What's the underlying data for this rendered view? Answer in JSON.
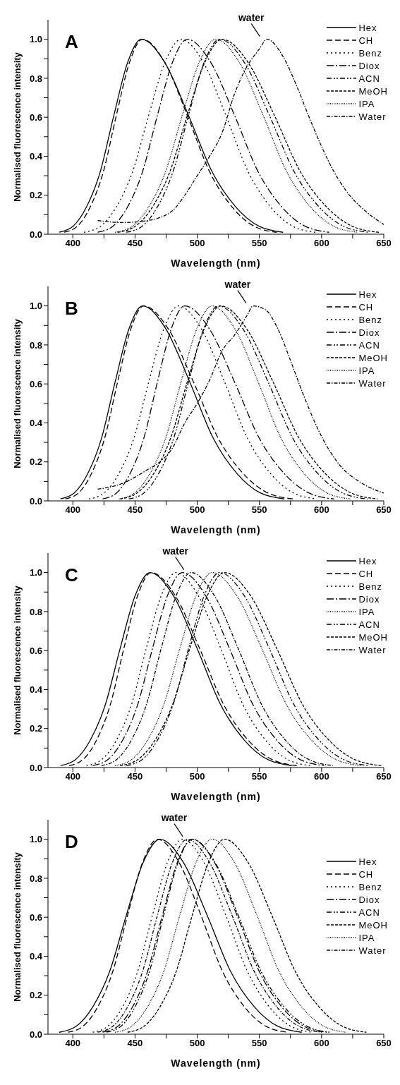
{
  "chart_data": [
    {
      "type": "line",
      "title": "A",
      "xlabel": "Wavelength (nm)",
      "ylabel": "Normalised fluorescence intensity",
      "xlim": [
        380,
        650
      ],
      "ylim": [
        0,
        1.1
      ],
      "xticks": [
        400,
        {
          "value": 425,
          "label": null
        },
        450,
        {
          "value": 475,
          "label": null
        },
        500,
        {
          "value": 525,
          "label": null
        },
        550,
        {
          "value": 575,
          "label": null
        },
        600,
        {
          "value": 625,
          "label": null
        },
        650
      ],
      "yticks": [
        {
          "value": 0,
          "label": "0.0"
        },
        {
          "value": 0.1,
          "label": null
        },
        {
          "value": 0.2,
          "label": "0.2"
        },
        {
          "value": 0.3,
          "label": null
        },
        {
          "value": 0.4,
          "label": "0.4"
        },
        {
          "value": 0.5,
          "label": null
        },
        {
          "value": 0.6,
          "label": "0.6"
        },
        {
          "value": 0.7,
          "label": null
        },
        {
          "value": 0.8,
          "label": "0.8"
        },
        {
          "value": 0.9,
          "label": null
        },
        {
          "value": 1,
          "label": "1.0"
        }
      ],
      "legend": "top right",
      "annotations": [
        {
          "text": "water",
          "x": 556,
          "y": 1.0
        }
      ],
      "series": [
        {
          "name": "Hex",
          "color": "#000000",
          "line_style": "solid",
          "x": [
            389,
            400,
            411,
            422,
            433,
            444,
            455,
            474,
            493,
            512,
            531,
            550,
            569
          ],
          "values": [
            0.01,
            0.04,
            0.14,
            0.32,
            0.61,
            0.88,
            1,
            0.88,
            0.61,
            0.32,
            0.14,
            0.04,
            0.01
          ]
        },
        {
          "name": "CH",
          "color": "#000000",
          "line_style": "dashed",
          "x": [
            393,
            403.5,
            414,
            424.5,
            435,
            445.5,
            456,
            474,
            492,
            510,
            528,
            546,
            564
          ],
          "values": [
            0.01,
            0.04,
            0.14,
            0.32,
            0.61,
            0.88,
            1,
            0.88,
            0.61,
            0.32,
            0.14,
            0.04,
            0.01
          ]
        },
        {
          "name": "Benz",
          "color": "#000000",
          "line_style": "dotted",
          "x": [
            409,
            422,
            435,
            448,
            461,
            474,
            487,
            505,
            523,
            541,
            559,
            577,
            595
          ],
          "values": [
            0.01,
            0.04,
            0.14,
            0.32,
            0.61,
            0.88,
            1,
            0.88,
            0.61,
            0.32,
            0.14,
            0.04,
            0.01
          ]
        },
        {
          "name": "Diox",
          "color": "#000000",
          "line_style": "dashdot",
          "x": [
            420,
            432,
            444,
            456,
            468,
            480,
            492,
            511,
            530,
            549,
            568,
            587,
            606
          ],
          "values": [
            0.01,
            0.04,
            0.14,
            0.32,
            0.61,
            0.88,
            1,
            0.88,
            0.61,
            0.32,
            0.14,
            0.04,
            0.01
          ]
        },
        {
          "name": "ACN",
          "color": "#000000",
          "line_style": "dashdotdot",
          "x": [
            443,
            455.5,
            468,
            480.5,
            493,
            505.5,
            518,
            538,
            558,
            578,
            598,
            618,
            638
          ],
          "values": [
            0.01,
            0.04,
            0.14,
            0.32,
            0.61,
            0.88,
            1,
            0.88,
            0.61,
            0.32,
            0.14,
            0.04,
            0.01
          ]
        },
        {
          "name": "MeOH",
          "color": "#000000",
          "line_style": "shortdash",
          "x": [
            436,
            450,
            464,
            478,
            492,
            506,
            520,
            541,
            562,
            583,
            604,
            625,
            646
          ],
          "values": [
            0.01,
            0.04,
            0.14,
            0.32,
            0.61,
            0.88,
            1,
            0.88,
            0.61,
            0.32,
            0.14,
            0.04,
            0.01
          ]
        },
        {
          "name": "IPA",
          "color": "#000000",
          "line_style": "densedot",
          "x": [
            434,
            447.5,
            461,
            474.5,
            488,
            501.5,
            515,
            534,
            553,
            572,
            591,
            610,
            629
          ],
          "values": [
            0.01,
            0.04,
            0.14,
            0.32,
            0.61,
            0.88,
            1,
            0.88,
            0.61,
            0.32,
            0.14,
            0.04,
            0.01
          ]
        },
        {
          "name": "Water",
          "color": "#000000",
          "line_style": "shortdashdot",
          "x": [
            420,
            440,
            460,
            480,
            490,
            500,
            510,
            520,
            530,
            540,
            550,
            556,
            570,
            580,
            590,
            600,
            610,
            620,
            635,
            650
          ],
          "values": [
            0.07,
            0.06,
            0.07,
            0.12,
            0.2,
            0.3,
            0.4,
            0.52,
            0.72,
            0.86,
            0.95,
            1,
            0.9,
            0.76,
            0.6,
            0.45,
            0.32,
            0.22,
            0.12,
            0.05
          ]
        }
      ]
    },
    {
      "type": "line",
      "title": "B",
      "xlabel": "Wavelength (nm)",
      "ylabel": "Normalised fluorescence intensity",
      "xlim": [
        380,
        650
      ],
      "ylim": [
        0,
        1.1
      ],
      "xticks": [
        400,
        {
          "value": 425,
          "label": null
        },
        450,
        {
          "value": 475,
          "label": null
        },
        500,
        {
          "value": 525,
          "label": null
        },
        550,
        {
          "value": 575,
          "label": null
        },
        600,
        {
          "value": 625,
          "label": null
        },
        650
      ],
      "yticks": [
        {
          "value": 0,
          "label": "0.0"
        },
        {
          "value": 0.1,
          "label": null
        },
        {
          "value": 0.2,
          "label": "0.2"
        },
        {
          "value": 0.3,
          "label": null
        },
        {
          "value": 0.4,
          "label": "0.4"
        },
        {
          "value": 0.5,
          "label": null
        },
        {
          "value": 0.6,
          "label": "0.6"
        },
        {
          "value": 0.7,
          "label": null
        },
        {
          "value": 0.8,
          "label": "0.8"
        },
        {
          "value": 0.9,
          "label": null
        },
        {
          "value": 1,
          "label": "1.0"
        }
      ],
      "legend": "top right",
      "annotations": [
        {
          "text": "water",
          "x": 545,
          "y": 1.0
        }
      ],
      "series": [
        {
          "name": "Hex",
          "color": "#000000",
          "line_style": "solid",
          "x": [
            390,
            401,
            412,
            423,
            434,
            445,
            456,
            475,
            494,
            513,
            532,
            551,
            570
          ],
          "values": [
            0.01,
            0.04,
            0.14,
            0.32,
            0.61,
            0.88,
            1,
            0.88,
            0.61,
            0.32,
            0.14,
            0.04,
            0.01
          ]
        },
        {
          "name": "CH",
          "color": "#000000",
          "line_style": "dashed",
          "x": [
            394,
            404.5,
            415,
            425.5,
            436,
            446.5,
            457,
            477,
            497,
            517,
            537,
            557,
            577
          ],
          "values": [
            0.01,
            0.04,
            0.14,
            0.32,
            0.61,
            0.88,
            1,
            0.88,
            0.61,
            0.32,
            0.14,
            0.04,
            0.01
          ]
        },
        {
          "name": "Benz",
          "color": "#000000",
          "line_style": "dotted",
          "x": [
            413,
            425,
            437,
            449,
            461,
            473,
            485,
            503.5,
            522,
            540.5,
            559,
            577.5,
            596
          ],
          "values": [
            0.01,
            0.04,
            0.14,
            0.32,
            0.61,
            0.88,
            1,
            0.88,
            0.61,
            0.32,
            0.14,
            0.04,
            0.01
          ]
        },
        {
          "name": "Diox",
          "color": "#000000",
          "line_style": "dashdot",
          "x": [
            424,
            435,
            446,
            457,
            468,
            479,
            490,
            510,
            530,
            550,
            570,
            590,
            610
          ],
          "values": [
            0.01,
            0.04,
            0.14,
            0.32,
            0.61,
            0.88,
            1,
            0.88,
            0.61,
            0.32,
            0.14,
            0.04,
            0.01
          ]
        },
        {
          "name": "ACN",
          "color": "#000000",
          "line_style": "dashdotdot",
          "x": [
            445,
            457,
            469,
            481,
            493,
            505,
            517,
            537,
            557,
            577,
            597,
            617,
            637
          ],
          "values": [
            0.01,
            0.04,
            0.14,
            0.32,
            0.61,
            0.88,
            1,
            0.88,
            0.61,
            0.32,
            0.14,
            0.04,
            0.01
          ]
        },
        {
          "name": "MeOH",
          "color": "#000000",
          "line_style": "shortdash",
          "x": [
            438,
            451.5,
            465,
            478.5,
            492,
            505.5,
            519,
            540,
            561,
            582,
            603,
            624,
            645
          ],
          "values": [
            0.01,
            0.04,
            0.14,
            0.32,
            0.61,
            0.88,
            1,
            0.88,
            0.61,
            0.32,
            0.14,
            0.04,
            0.01
          ]
        },
        {
          "name": "IPA",
          "color": "#000000",
          "line_style": "densedot",
          "x": [
            437,
            449.5,
            462,
            474.5,
            487,
            499.5,
            512,
            530.5,
            549,
            567.5,
            586,
            604.5,
            623
          ],
          "values": [
            0.01,
            0.04,
            0.14,
            0.32,
            0.61,
            0.88,
            1,
            0.88,
            0.61,
            0.32,
            0.14,
            0.04,
            0.01
          ]
        },
        {
          "name": "Water",
          "color": "#000000",
          "line_style": "shortdashdot",
          "x": [
            420,
            440,
            460,
            470,
            480,
            490,
            500,
            510,
            520,
            530,
            540,
            545,
            555,
            565,
            575,
            585,
            600,
            615,
            630,
            650
          ],
          "values": [
            0.06,
            0.09,
            0.16,
            0.2,
            0.27,
            0.4,
            0.5,
            0.62,
            0.77,
            0.85,
            0.95,
            1,
            0.98,
            0.88,
            0.72,
            0.55,
            0.33,
            0.18,
            0.1,
            0.04
          ]
        }
      ]
    },
    {
      "type": "line",
      "title": "C",
      "xlabel": "Wavelength (nm)",
      "ylabel": "Normalised fluorescence intensity",
      "xlim": [
        380,
        650
      ],
      "ylim": [
        0,
        1.1
      ],
      "xticks": [
        400,
        {
          "value": 425,
          "label": null
        },
        450,
        {
          "value": 475,
          "label": null
        },
        500,
        {
          "value": 525,
          "label": null
        },
        550,
        {
          "value": 575,
          "label": null
        },
        600,
        {
          "value": 625,
          "label": null
        },
        650
      ],
      "yticks": [
        {
          "value": 0,
          "label": "0.0"
        },
        {
          "value": 0.1,
          "label": null
        },
        {
          "value": 0.2,
          "label": "0.2"
        },
        {
          "value": 0.3,
          "label": null
        },
        {
          "value": 0.4,
          "label": "0.4"
        },
        {
          "value": 0.5,
          "label": null
        },
        {
          "value": 0.6,
          "label": "0.6"
        },
        {
          "value": 0.7,
          "label": null
        },
        {
          "value": 0.8,
          "label": "0.8"
        },
        {
          "value": 0.9,
          "label": null
        },
        {
          "value": 1,
          "label": "1.0"
        }
      ],
      "legend": "top right",
      "annotations": [
        {
          "text": "water",
          "x": 495,
          "y": 1.0
        }
      ],
      "series": [
        {
          "name": "Hex",
          "color": "#000000",
          "line_style": "solid",
          "x": [
            390,
            402,
            414,
            426,
            438,
            450,
            462,
            481,
            500,
            519,
            538,
            557,
            576
          ],
          "values": [
            0.01,
            0.04,
            0.14,
            0.32,
            0.61,
            0.88,
            1,
            0.88,
            0.61,
            0.32,
            0.14,
            0.04,
            0.01
          ]
        },
        {
          "name": "CH",
          "color": "#000000",
          "line_style": "dashed",
          "x": [
            397,
            408,
            419,
            430,
            441,
            452,
            463,
            482.5,
            502,
            521.5,
            541,
            560.5,
            580
          ],
          "values": [
            0.01,
            0.04,
            0.14,
            0.32,
            0.61,
            0.88,
            1,
            0.88,
            0.61,
            0.32,
            0.14,
            0.04,
            0.01
          ]
        },
        {
          "name": "Benz",
          "color": "#000000",
          "line_style": "dotted",
          "x": [
            411,
            423,
            435,
            447,
            459,
            471,
            483,
            501,
            519,
            537,
            555,
            573,
            591
          ],
          "values": [
            0.01,
            0.04,
            0.14,
            0.32,
            0.61,
            0.88,
            1,
            0.88,
            0.61,
            0.32,
            0.14,
            0.04,
            0.01
          ]
        },
        {
          "name": "Diox",
          "color": "#000000",
          "line_style": "dashdot",
          "x": [
            416,
            428,
            440,
            452,
            464,
            476,
            488,
            507,
            526,
            545,
            564,
            583,
            602
          ],
          "values": [
            0.01,
            0.04,
            0.14,
            0.32,
            0.61,
            0.88,
            1,
            0.88,
            0.61,
            0.32,
            0.14,
            0.04,
            0.01
          ]
        },
        {
          "name": "IPA",
          "color": "#000000",
          "line_style": "densedot",
          "x": [
            434,
            447,
            460,
            473,
            486,
            499,
            512,
            532,
            552,
            572,
            592,
            612,
            632
          ],
          "values": [
            0.01,
            0.04,
            0.14,
            0.32,
            0.61,
            0.88,
            1,
            0.88,
            0.61,
            0.32,
            0.14,
            0.04,
            0.01
          ]
        },
        {
          "name": "ACN",
          "color": "#000000",
          "line_style": "dashdotdot",
          "x": [
            443,
            455.5,
            468,
            480.5,
            493,
            505.5,
            518,
            538,
            558,
            578,
            598,
            618,
            638
          ],
          "values": [
            0.01,
            0.04,
            0.14,
            0.32,
            0.61,
            0.88,
            1,
            0.88,
            0.61,
            0.32,
            0.14,
            0.04,
            0.01
          ]
        },
        {
          "name": "MeOH",
          "color": "#000000",
          "line_style": "shortdash",
          "x": [
            438,
            452,
            466,
            480,
            494,
            508,
            522,
            543,
            564,
            585,
            606,
            627,
            648
          ],
          "values": [
            0.01,
            0.04,
            0.14,
            0.32,
            0.61,
            0.88,
            1,
            0.88,
            0.61,
            0.32,
            0.14,
            0.04,
            0.01
          ]
        },
        {
          "name": "Water",
          "color": "#000000",
          "line_style": "shortdashdot",
          "x": [
            423,
            435,
            447,
            459,
            471,
            483,
            495,
            514,
            533,
            552,
            571,
            590,
            609
          ],
          "values": [
            0.01,
            0.04,
            0.14,
            0.32,
            0.61,
            0.88,
            1,
            0.88,
            0.61,
            0.32,
            0.14,
            0.04,
            0.01
          ]
        }
      ]
    },
    {
      "type": "line",
      "title": "D",
      "xlabel": "Wavelength (nm)",
      "ylabel": "Normalised fluorescence intensity",
      "xlim": [
        380,
        650
      ],
      "ylim": [
        0,
        1.1
      ],
      "xticks": [
        400,
        {
          "value": 425,
          "label": null
        },
        450,
        {
          "value": 475,
          "label": null
        },
        500,
        {
          "value": 525,
          "label": null
        },
        550,
        {
          "value": 575,
          "label": null
        },
        600,
        {
          "value": 625,
          "label": null
        },
        650
      ],
      "yticks": [
        {
          "value": 0,
          "label": "0.0"
        },
        {
          "value": 0.1,
          "label": null
        },
        {
          "value": 0.2,
          "label": "0.2"
        },
        {
          "value": 0.3,
          "label": null
        },
        {
          "value": 0.4,
          "label": "0.4"
        },
        {
          "value": 0.5,
          "label": null
        },
        {
          "value": 0.6,
          "label": "0.6"
        },
        {
          "value": 0.7,
          "label": null
        },
        {
          "value": 0.8,
          "label": "0.8"
        },
        {
          "value": 0.9,
          "label": null
        },
        {
          "value": 1,
          "label": "1.0"
        }
      ],
      "legend": "right",
      "annotations": [
        {
          "text": "water",
          "x": 494,
          "y": 1.0
        }
      ],
      "series": [
        {
          "name": "Hex",
          "color": "#000000",
          "line_style": "solid",
          "x": [
            389,
            402.5,
            416,
            429.5,
            443,
            456.5,
            470,
            489,
            508,
            527,
            546,
            565,
            584
          ],
          "values": [
            0.01,
            0.04,
            0.14,
            0.32,
            0.61,
            0.88,
            1,
            0.88,
            0.61,
            0.32,
            0.14,
            0.04,
            0.01
          ]
        },
        {
          "name": "CH",
          "color": "#000000",
          "line_style": "dashed",
          "x": [
            396,
            408,
            420,
            432,
            444,
            456,
            468,
            485.5,
            503,
            520.5,
            538,
            555.5,
            573
          ],
          "values": [
            0.01,
            0.04,
            0.14,
            0.32,
            0.61,
            0.88,
            1,
            0.88,
            0.61,
            0.32,
            0.14,
            0.04,
            0.01
          ]
        },
        {
          "name": "Benz",
          "color": "#000000",
          "line_style": "dotted",
          "x": [
            416,
            428,
            440,
            452,
            464,
            476,
            488,
            505.5,
            523,
            540.5,
            558,
            575.5,
            593
          ],
          "values": [
            0.01,
            0.04,
            0.14,
            0.32,
            0.61,
            0.88,
            1,
            0.88,
            0.61,
            0.32,
            0.14,
            0.04,
            0.01
          ]
        },
        {
          "name": "Diox",
          "color": "#000000",
          "line_style": "dashdot",
          "x": [
            424,
            436,
            448,
            460,
            472,
            484,
            496,
            514,
            532,
            550,
            568,
            586,
            604
          ],
          "values": [
            0.01,
            0.04,
            0.14,
            0.32,
            0.61,
            0.88,
            1,
            0.88,
            0.61,
            0.32,
            0.14,
            0.04,
            0.01
          ]
        },
        {
          "name": "ACN",
          "color": "#000000",
          "line_style": "dashdotdot",
          "x": [
            427,
            438.5,
            450,
            461.5,
            473,
            484.5,
            496,
            514.5,
            533,
            551.5,
            570,
            588.5,
            607
          ],
          "values": [
            0.01,
            0.04,
            0.14,
            0.32,
            0.61,
            0.88,
            1,
            0.88,
            0.61,
            0.32,
            0.14,
            0.04,
            0.01
          ]
        },
        {
          "name": "MeOH",
          "color": "#000000",
          "line_style": "shortdash",
          "x": [
            444,
            457,
            470,
            483,
            496,
            509,
            522,
            541,
            560,
            579,
            598,
            617,
            636
          ],
          "values": [
            0.01,
            0.04,
            0.14,
            0.32,
            0.61,
            0.88,
            1,
            0.88,
            0.61,
            0.32,
            0.14,
            0.04,
            0.01
          ]
        },
        {
          "name": "IPA",
          "color": "#000000",
          "line_style": "densedot",
          "x": [
            434,
            447,
            460,
            473,
            486,
            499,
            512,
            530,
            548,
            566,
            584,
            602,
            620
          ],
          "values": [
            0.01,
            0.04,
            0.14,
            0.32,
            0.61,
            0.88,
            1,
            0.88,
            0.61,
            0.32,
            0.14,
            0.04,
            0.01
          ]
        },
        {
          "name": "Water",
          "color": "#000000",
          "line_style": "shortdashdot",
          "x": [
            420,
            432,
            444,
            456,
            468,
            480,
            492,
            510,
            528,
            546,
            564,
            582,
            600
          ],
          "values": [
            0.01,
            0.04,
            0.14,
            0.32,
            0.61,
            0.88,
            1,
            0.88,
            0.61,
            0.32,
            0.14,
            0.04,
            0.01
          ]
        }
      ]
    }
  ]
}
